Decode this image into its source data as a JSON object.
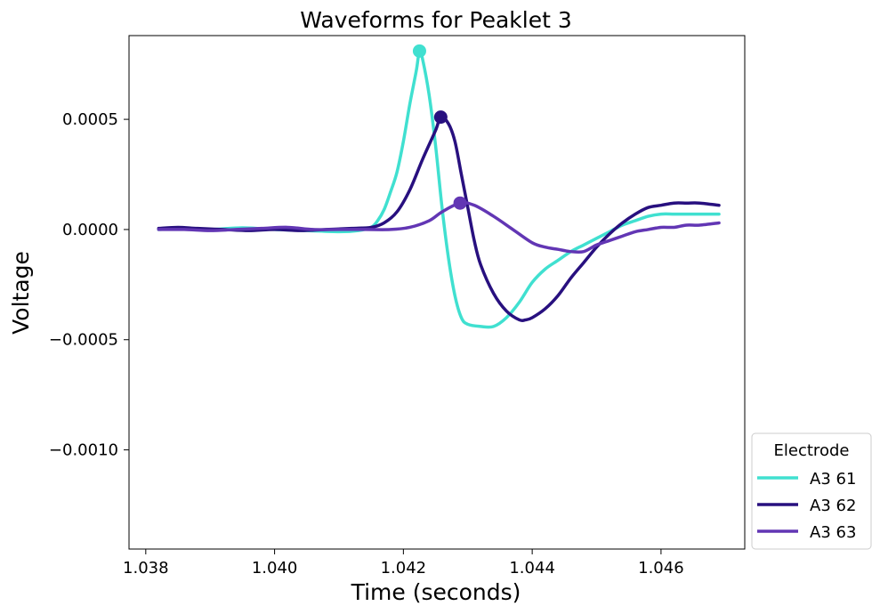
{
  "chart_data": {
    "type": "line",
    "title": "Waveforms for Peaklet 3",
    "xlabel": "Time (seconds)",
    "ylabel": "Voltage",
    "xlim": [
      1.03774,
      1.0473
    ],
    "ylim": [
      -0.00145,
      0.00088
    ],
    "xticks": [
      1.038,
      1.04,
      1.042,
      1.044,
      1.046
    ],
    "xtick_labels": [
      "1.038",
      "1.040",
      "1.042",
      "1.044",
      "1.046"
    ],
    "yticks": [
      0.0005,
      0.0,
      -0.0005,
      -0.001
    ],
    "ytick_labels": [
      "0.0005",
      "0.0000",
      "−0.0005",
      "−0.0010"
    ],
    "grid": false,
    "legend": {
      "title": "Electrode",
      "placement": "outside-right-bottom"
    },
    "series": [
      {
        "name": "A3 61",
        "color": "#40E0D0",
        "peak": {
          "x": 1.04225,
          "y": 0.00081
        },
        "points": [
          [
            1.0382,
            0.0
          ],
          [
            1.0386,
            5e-06
          ],
          [
            1.039,
            0.0
          ],
          [
            1.0395,
            8e-06
          ],
          [
            1.04,
            0.0
          ],
          [
            1.0405,
            -5e-06
          ],
          [
            1.041,
            -1e-05
          ],
          [
            1.0413,
            -5e-06
          ],
          [
            1.0415,
            1e-05
          ],
          [
            1.0416,
            4e-05
          ],
          [
            1.0417,
            9e-05
          ],
          [
            1.0418,
            0.00017
          ],
          [
            1.0419,
            0.00026
          ],
          [
            1.042,
            0.0004
          ],
          [
            1.0421,
            0.00057
          ],
          [
            1.0422,
            0.00072
          ],
          [
            1.04225,
            0.00081
          ],
          [
            1.0423,
            0.00077
          ],
          [
            1.0424,
            0.00061
          ],
          [
            1.0425,
            0.00038
          ],
          [
            1.0426,
            0.0001
          ],
          [
            1.0427,
            -0.00013
          ],
          [
            1.0428,
            -0.0003
          ],
          [
            1.0429,
            -0.0004
          ],
          [
            1.043,
            -0.00043
          ],
          [
            1.0432,
            -0.00044
          ],
          [
            1.0434,
            -0.00044
          ],
          [
            1.0436,
            -0.0004
          ],
          [
            1.0438,
            -0.00033
          ],
          [
            1.044,
            -0.00024
          ],
          [
            1.0442,
            -0.00018
          ],
          [
            1.0444,
            -0.00014
          ],
          [
            1.0446,
            -0.0001
          ],
          [
            1.0448,
            -7e-05
          ],
          [
            1.045,
            -4e-05
          ],
          [
            1.0452,
            -1e-05
          ],
          [
            1.0454,
            2e-05
          ],
          [
            1.0456,
            4e-05
          ],
          [
            1.0458,
            6e-05
          ],
          [
            1.046,
            7e-05
          ],
          [
            1.0462,
            7e-05
          ],
          [
            1.0464,
            7e-05
          ],
          [
            1.0466,
            7e-05
          ],
          [
            1.0469,
            7e-05
          ]
        ]
      },
      {
        "name": "A3 62",
        "color": "#28107F",
        "peak": {
          "x": 1.04258,
          "y": 0.00051
        },
        "points": [
          [
            1.0382,
            5e-06
          ],
          [
            1.0385,
            1e-05
          ],
          [
            1.0388,
            5e-06
          ],
          [
            1.0392,
            0.0
          ],
          [
            1.0396,
            -5e-06
          ],
          [
            1.04,
            0.0
          ],
          [
            1.0404,
            -5e-06
          ],
          [
            1.0408,
            0.0
          ],
          [
            1.0412,
            5e-06
          ],
          [
            1.0415,
            1e-05
          ],
          [
            1.0417,
            3e-05
          ],
          [
            1.0419,
            8e-05
          ],
          [
            1.0421,
            0.00018
          ],
          [
            1.0423,
            0.00032
          ],
          [
            1.0425,
            0.00045
          ],
          [
            1.04258,
            0.00051
          ],
          [
            1.0427,
            0.00048
          ],
          [
            1.0428,
            0.0004
          ],
          [
            1.0429,
            0.00025
          ],
          [
            1.043,
            0.0001
          ],
          [
            1.0431,
            -5e-05
          ],
          [
            1.0432,
            -0.00016
          ],
          [
            1.0434,
            -0.00029
          ],
          [
            1.0436,
            -0.00037
          ],
          [
            1.0438,
            -0.00041
          ],
          [
            1.0439,
            -0.00041
          ],
          [
            1.044,
            -0.0004
          ],
          [
            1.0442,
            -0.00036
          ],
          [
            1.0444,
            -0.0003
          ],
          [
            1.0446,
            -0.00022
          ],
          [
            1.0448,
            -0.00015
          ],
          [
            1.045,
            -8e-05
          ],
          [
            1.0452,
            -2e-05
          ],
          [
            1.0454,
            3e-05
          ],
          [
            1.0456,
            7e-05
          ],
          [
            1.0458,
            0.0001
          ],
          [
            1.046,
            0.00011
          ],
          [
            1.0462,
            0.00012
          ],
          [
            1.0464,
            0.00012
          ],
          [
            1.0466,
            0.00012
          ],
          [
            1.0469,
            0.00011
          ]
        ]
      },
      {
        "name": "A3 63",
        "color": "#6236B4",
        "peak": {
          "x": 1.04288,
          "y": 0.00012
        },
        "points": [
          [
            1.0382,
            0.0
          ],
          [
            1.0386,
            0.0
          ],
          [
            1.039,
            -5e-06
          ],
          [
            1.0394,
            0.0
          ],
          [
            1.0398,
            5e-06
          ],
          [
            1.0402,
            1e-05
          ],
          [
            1.0406,
            0.0
          ],
          [
            1.041,
            0.0
          ],
          [
            1.0414,
            0.0
          ],
          [
            1.0418,
            0.0
          ],
          [
            1.0421,
            1e-05
          ],
          [
            1.0424,
            4e-05
          ],
          [
            1.0426,
            8e-05
          ],
          [
            1.04288,
            0.00012
          ],
          [
            1.0431,
            0.00011
          ],
          [
            1.0434,
            6e-05
          ],
          [
            1.0437,
            0.0
          ],
          [
            1.044,
            -6e-05
          ],
          [
            1.0442,
            -8e-05
          ],
          [
            1.0444,
            -9e-05
          ],
          [
            1.0446,
            -0.0001
          ],
          [
            1.0448,
            -0.0001
          ],
          [
            1.045,
            -7e-05
          ],
          [
            1.0452,
            -5e-05
          ],
          [
            1.0454,
            -3e-05
          ],
          [
            1.0456,
            -1e-05
          ],
          [
            1.0458,
            0.0
          ],
          [
            1.046,
            1e-05
          ],
          [
            1.0462,
            1e-05
          ],
          [
            1.0464,
            2e-05
          ],
          [
            1.0466,
            2e-05
          ],
          [
            1.0469,
            3e-05
          ]
        ]
      }
    ]
  }
}
